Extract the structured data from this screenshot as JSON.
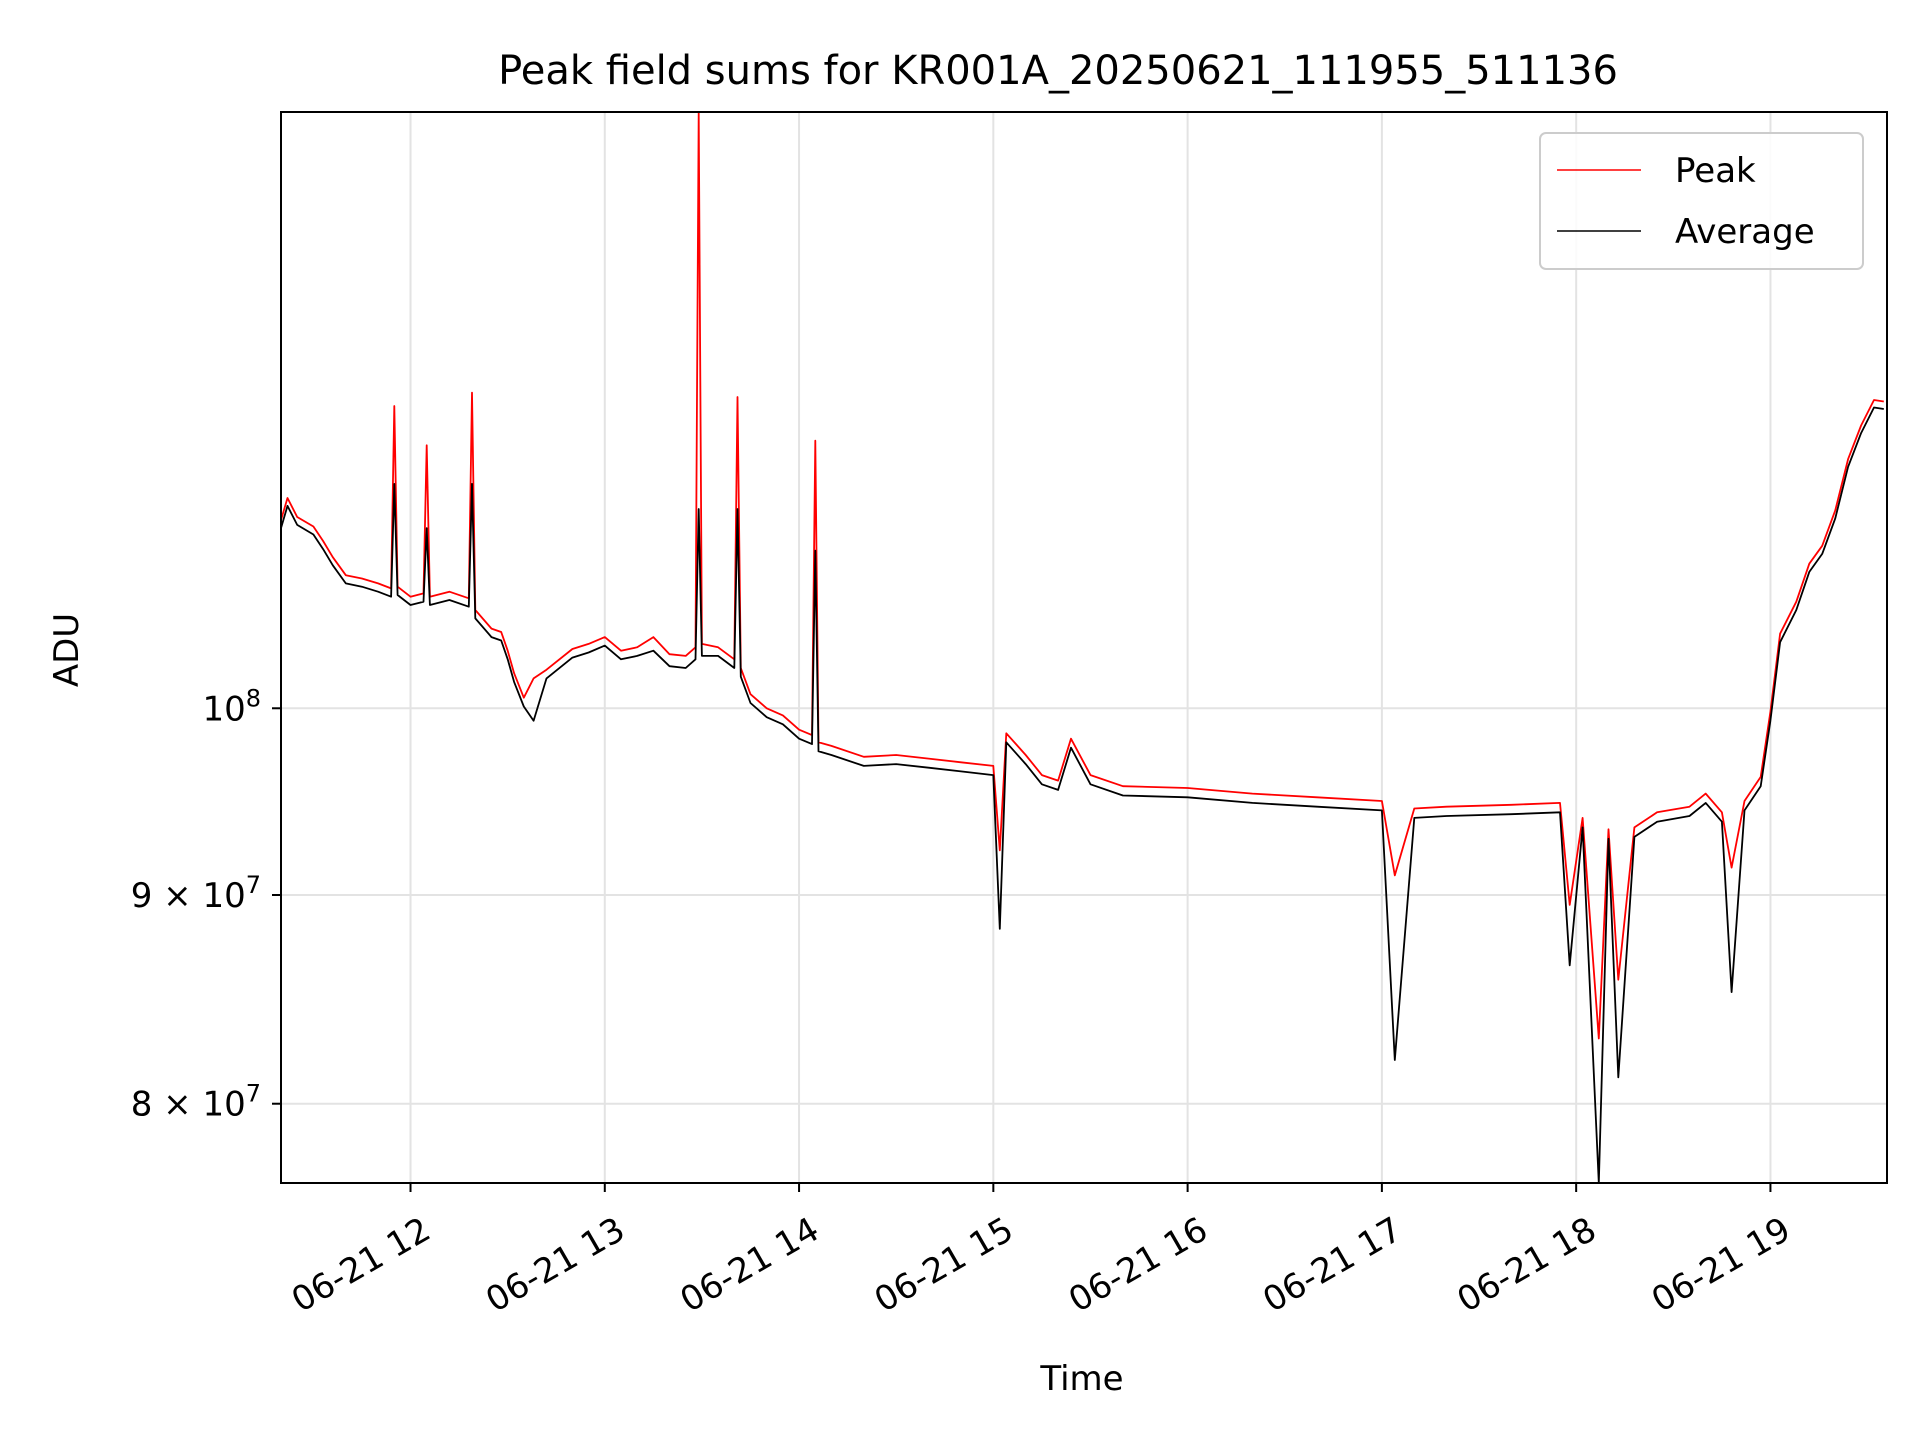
{
  "chart_data": {
    "type": "line",
    "title": "Peak field sums for KR001A_20250621_111955_511136",
    "xlabel": "Time",
    "ylabel": "ADU",
    "y_scale": "log",
    "xlim": [
      "2025-06-21 11:20",
      "2025-06-21 19:36"
    ],
    "ylim": [
      76500000,
      140000000
    ],
    "x_ticks": [
      {
        "value": "2025-06-21 12:00",
        "label": "06-21 12"
      },
      {
        "value": "2025-06-21 13:00",
        "label": "06-21 13"
      },
      {
        "value": "2025-06-21 14:00",
        "label": "06-21 14"
      },
      {
        "value": "2025-06-21 15:00",
        "label": "06-21 15"
      },
      {
        "value": "2025-06-21 16:00",
        "label": "06-21 16"
      },
      {
        "value": "2025-06-21 17:00",
        "label": "06-21 17"
      },
      {
        "value": "2025-06-21 18:00",
        "label": "06-21 18"
      },
      {
        "value": "2025-06-21 19:00",
        "label": "06-21 19"
      }
    ],
    "y_ticks": [
      {
        "value": 100000000,
        "mantissa": "",
        "base": "10",
        "exp": "8"
      },
      {
        "value": 90000000,
        "mantissa": "9 × ",
        "base": "10",
        "exp": "7"
      },
      {
        "value": 80000000,
        "mantissa": "8 × ",
        "base": "10",
        "exp": "7"
      }
    ],
    "grid": true,
    "legend_position": "top-right",
    "series": [
      {
        "name": "Peak",
        "color": "#ff0000",
        "points": [
          [
            "2025-06-21 11:20",
            111200000
          ],
          [
            "2025-06-21 11:22",
            112600000
          ],
          [
            "2025-06-21 11:25",
            111400000
          ],
          [
            "2025-06-21 11:30",
            110800000
          ],
          [
            "2025-06-21 11:33",
            109900000
          ],
          [
            "2025-06-21 11:36",
            108900000
          ],
          [
            "2025-06-21 11:40",
            107800000
          ],
          [
            "2025-06-21 11:45",
            107600000
          ],
          [
            "2025-06-21 11:50",
            107300000
          ],
          [
            "2025-06-21 11:54",
            107000000
          ],
          [
            "2025-06-21 11:55",
            118600000
          ],
          [
            "2025-06-21 11:56",
            107100000
          ],
          [
            "2025-06-21 12:00",
            106500000
          ],
          [
            "2025-06-21 12:04",
            106700000
          ],
          [
            "2025-06-21 12:05",
            116000000
          ],
          [
            "2025-06-21 12:06",
            106500000
          ],
          [
            "2025-06-21 12:12",
            106800000
          ],
          [
            "2025-06-21 12:18",
            106400000
          ],
          [
            "2025-06-21 12:19",
            119500000
          ],
          [
            "2025-06-21 12:20",
            105700000
          ],
          [
            "2025-06-21 12:25",
            104600000
          ],
          [
            "2025-06-21 12:28",
            104400000
          ],
          [
            "2025-06-21 12:30",
            103300000
          ],
          [
            "2025-06-21 12:32",
            102000000
          ],
          [
            "2025-06-21 12:35",
            100600000
          ],
          [
            "2025-06-21 12:38",
            101700000
          ],
          [
            "2025-06-21 12:42",
            102200000
          ],
          [
            "2025-06-21 12:50",
            103400000
          ],
          [
            "2025-06-21 12:55",
            103700000
          ],
          [
            "2025-06-21 13:00",
            104100000
          ],
          [
            "2025-06-21 13:05",
            103300000
          ],
          [
            "2025-06-21 13:10",
            103500000
          ],
          [
            "2025-06-21 13:15",
            104100000
          ],
          [
            "2025-06-21 13:20",
            103100000
          ],
          [
            "2025-06-21 13:25",
            103000000
          ],
          [
            "2025-06-21 13:28",
            103500000
          ],
          [
            "2025-06-21 13:29",
            140000000
          ],
          [
            "2025-06-21 13:30",
            103700000
          ],
          [
            "2025-06-21 13:35",
            103500000
          ],
          [
            "2025-06-21 13:40",
            102800000
          ],
          [
            "2025-06-21 13:41",
            119200000
          ],
          [
            "2025-06-21 13:42",
            102300000
          ],
          [
            "2025-06-21 13:45",
            100800000
          ],
          [
            "2025-06-21 13:50",
            100000000
          ],
          [
            "2025-06-21 13:55",
            99600000
          ],
          [
            "2025-06-21 14:00",
            98800000
          ],
          [
            "2025-06-21 14:04",
            98500000
          ],
          [
            "2025-06-21 14:05",
            116300000
          ],
          [
            "2025-06-21 14:06",
            98100000
          ],
          [
            "2025-06-21 14:10",
            97900000
          ],
          [
            "2025-06-21 14:20",
            97300000
          ],
          [
            "2025-06-21 14:30",
            97400000
          ],
          [
            "2025-06-21 14:40",
            97200000
          ],
          [
            "2025-06-21 14:50",
            97000000
          ],
          [
            "2025-06-21 15:00",
            96800000
          ],
          [
            "2025-06-21 15:02",
            92300000
          ],
          [
            "2025-06-21 15:04",
            98600000
          ],
          [
            "2025-06-21 15:10",
            97400000
          ],
          [
            "2025-06-21 15:15",
            96300000
          ],
          [
            "2025-06-21 15:20",
            96000000
          ],
          [
            "2025-06-21 15:24",
            98300000
          ],
          [
            "2025-06-21 15:30",
            96300000
          ],
          [
            "2025-06-21 15:40",
            95700000
          ],
          [
            "2025-06-21 16:00",
            95600000
          ],
          [
            "2025-06-21 16:20",
            95300000
          ],
          [
            "2025-06-21 16:40",
            95100000
          ],
          [
            "2025-06-21 17:00",
            94900000
          ],
          [
            "2025-06-21 17:04",
            91000000
          ],
          [
            "2025-06-21 17:10",
            94500000
          ],
          [
            "2025-06-21 17:20",
            94600000
          ],
          [
            "2025-06-21 17:40",
            94700000
          ],
          [
            "2025-06-21 17:55",
            94800000
          ],
          [
            "2025-06-21 17:58",
            89500000
          ],
          [
            "2025-06-21 18:02",
            94000000
          ],
          [
            "2025-06-21 18:07",
            83000000
          ],
          [
            "2025-06-21 18:10",
            93400000
          ],
          [
            "2025-06-21 18:13",
            85800000
          ],
          [
            "2025-06-21 18:18",
            93500000
          ],
          [
            "2025-06-21 18:25",
            94300000
          ],
          [
            "2025-06-21 18:35",
            94600000
          ],
          [
            "2025-06-21 18:40",
            95300000
          ],
          [
            "2025-06-21 18:45",
            94300000
          ],
          [
            "2025-06-21 18:48",
            91400000
          ],
          [
            "2025-06-21 18:52",
            94900000
          ],
          [
            "2025-06-21 18:57",
            96200000
          ],
          [
            "2025-06-21 19:00",
            99800000
          ],
          [
            "2025-06-21 19:03",
            104300000
          ],
          [
            "2025-06-21 19:08",
            106200000
          ],
          [
            "2025-06-21 19:12",
            108500000
          ],
          [
            "2025-06-21 19:16",
            109600000
          ],
          [
            "2025-06-21 19:20",
            111800000
          ],
          [
            "2025-06-21 19:24",
            115100000
          ],
          [
            "2025-06-21 19:28",
            117300000
          ],
          [
            "2025-06-21 19:32",
            119000000
          ],
          [
            "2025-06-21 19:35",
            118900000
          ]
        ]
      },
      {
        "name": "Average",
        "color": "#000000",
        "points": [
          [
            "2025-06-21 11:20",
            110700000
          ],
          [
            "2025-06-21 11:22",
            112100000
          ],
          [
            "2025-06-21 11:25",
            110900000
          ],
          [
            "2025-06-21 11:30",
            110300000
          ],
          [
            "2025-06-21 11:33",
            109400000
          ],
          [
            "2025-06-21 11:36",
            108400000
          ],
          [
            "2025-06-21 11:40",
            107300000
          ],
          [
            "2025-06-21 11:45",
            107100000
          ],
          [
            "2025-06-21 11:50",
            106800000
          ],
          [
            "2025-06-21 11:54",
            106500000
          ],
          [
            "2025-06-21 11:55",
            113500000
          ],
          [
            "2025-06-21 11:56",
            106600000
          ],
          [
            "2025-06-21 12:00",
            106000000
          ],
          [
            "2025-06-21 12:04",
            106200000
          ],
          [
            "2025-06-21 12:05",
            110700000
          ],
          [
            "2025-06-21 12:06",
            106000000
          ],
          [
            "2025-06-21 12:12",
            106300000
          ],
          [
            "2025-06-21 12:18",
            105900000
          ],
          [
            "2025-06-21 12:19",
            113500000
          ],
          [
            "2025-06-21 12:20",
            105200000
          ],
          [
            "2025-06-21 12:25",
            104100000
          ],
          [
            "2025-06-21 12:28",
            103900000
          ],
          [
            "2025-06-21 12:30",
            102800000
          ],
          [
            "2025-06-21 12:32",
            101500000
          ],
          [
            "2025-06-21 12:35",
            100100000
          ],
          [
            "2025-06-21 12:38",
            99300000
          ],
          [
            "2025-06-21 12:42",
            101700000
          ],
          [
            "2025-06-21 12:50",
            102900000
          ],
          [
            "2025-06-21 12:55",
            103200000
          ],
          [
            "2025-06-21 13:00",
            103600000
          ],
          [
            "2025-06-21 13:05",
            102800000
          ],
          [
            "2025-06-21 13:10",
            103000000
          ],
          [
            "2025-06-21 13:15",
            103300000
          ],
          [
            "2025-06-21 13:20",
            102400000
          ],
          [
            "2025-06-21 13:25",
            102300000
          ],
          [
            "2025-06-21 13:28",
            102800000
          ],
          [
            "2025-06-21 13:29",
            111900000
          ],
          [
            "2025-06-21 13:30",
            103000000
          ],
          [
            "2025-06-21 13:35",
            103000000
          ],
          [
            "2025-06-21 13:40",
            102300000
          ],
          [
            "2025-06-21 13:41",
            111900000
          ],
          [
            "2025-06-21 13:42",
            101800000
          ],
          [
            "2025-06-21 13:45",
            100300000
          ],
          [
            "2025-06-21 13:50",
            99500000
          ],
          [
            "2025-06-21 13:55",
            99100000
          ],
          [
            "2025-06-21 14:00",
            98300000
          ],
          [
            "2025-06-21 14:04",
            98000000
          ],
          [
            "2025-06-21 14:05",
            109300000
          ],
          [
            "2025-06-21 14:06",
            97600000
          ],
          [
            "2025-06-21 14:10",
            97400000
          ],
          [
            "2025-06-21 14:20",
            96800000
          ],
          [
            "2025-06-21 14:30",
            96900000
          ],
          [
            "2025-06-21 14:40",
            96700000
          ],
          [
            "2025-06-21 14:50",
            96500000
          ],
          [
            "2025-06-21 15:00",
            96300000
          ],
          [
            "2025-06-21 15:02",
            88300000
          ],
          [
            "2025-06-21 15:04",
            98100000
          ],
          [
            "2025-06-21 15:10",
            96900000
          ],
          [
            "2025-06-21 15:15",
            95800000
          ],
          [
            "2025-06-21 15:20",
            95500000
          ],
          [
            "2025-06-21 15:24",
            97800000
          ],
          [
            "2025-06-21 15:30",
            95800000
          ],
          [
            "2025-06-21 15:40",
            95200000
          ],
          [
            "2025-06-21 16:00",
            95100000
          ],
          [
            "2025-06-21 16:20",
            94800000
          ],
          [
            "2025-06-21 16:40",
            94600000
          ],
          [
            "2025-06-21 17:00",
            94400000
          ],
          [
            "2025-06-21 17:04",
            82000000
          ],
          [
            "2025-06-21 17:10",
            94000000
          ],
          [
            "2025-06-21 17:20",
            94100000
          ],
          [
            "2025-06-21 17:40",
            94200000
          ],
          [
            "2025-06-21 17:55",
            94300000
          ],
          [
            "2025-06-21 17:58",
            86500000
          ],
          [
            "2025-06-21 18:02",
            93500000
          ],
          [
            "2025-06-21 18:07",
            76500000
          ],
          [
            "2025-06-21 18:10",
            92900000
          ],
          [
            "2025-06-21 18:13",
            81200000
          ],
          [
            "2025-06-21 18:18",
            93000000
          ],
          [
            "2025-06-21 18:25",
            93800000
          ],
          [
            "2025-06-21 18:35",
            94100000
          ],
          [
            "2025-06-21 18:40",
            94800000
          ],
          [
            "2025-06-21 18:45",
            93800000
          ],
          [
            "2025-06-21 18:48",
            85200000
          ],
          [
            "2025-06-21 18:52",
            94400000
          ],
          [
            "2025-06-21 18:57",
            95700000
          ],
          [
            "2025-06-21 19:00",
            99300000
          ],
          [
            "2025-06-21 19:03",
            103800000
          ],
          [
            "2025-06-21 19:08",
            105700000
          ],
          [
            "2025-06-21 19:12",
            108000000
          ],
          [
            "2025-06-21 19:16",
            109100000
          ],
          [
            "2025-06-21 19:20",
            111300000
          ],
          [
            "2025-06-21 19:24",
            114600000
          ],
          [
            "2025-06-21 19:28",
            116800000
          ],
          [
            "2025-06-21 19:32",
            118500000
          ],
          [
            "2025-06-21 19:35",
            118400000
          ]
        ]
      }
    ]
  }
}
